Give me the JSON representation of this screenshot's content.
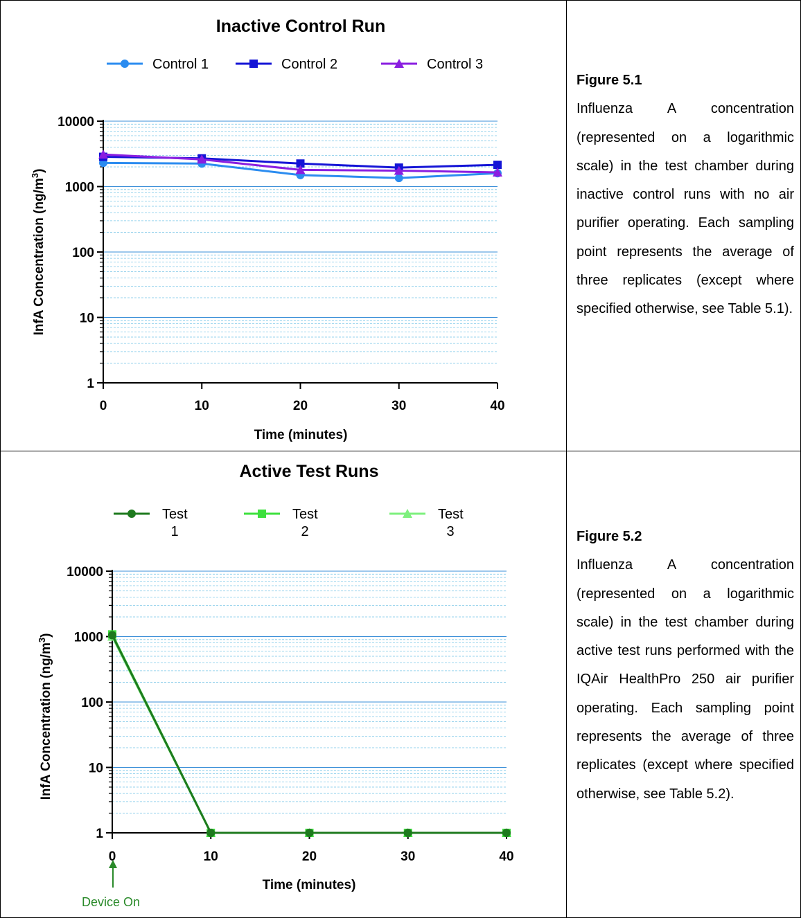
{
  "figures": [
    {
      "caption_title": "Figure 5.1",
      "caption_text": "Influenza A concentration (represented on a logarithmic scale) in the test chamber during inactive control runs with no air purifier operating. Each sampling point represents the average of three replicates (except where specified otherwise, see Table 5.1)."
    },
    {
      "caption_title": "Figure 5.2",
      "caption_text": "Influenza A concentration (represented on a logarithmic scale) in the test chamber during active test runs performed with the IQAir HealthPro 250 air purifier operating. Each sampling point represents the average of three replicates (except where specified otherwise, see Table 5.2)."
    }
  ],
  "chart_data": [
    {
      "type": "line",
      "title": "Inactive Control Run",
      "xlabel": "Time (minutes)",
      "ylabel": "InfA Concentration (ng/m",
      "ylabel_sup": "3",
      "ylabel_close": ")",
      "y_scale": "log",
      "ylim": [
        1,
        10000
      ],
      "xlim": [
        0,
        40
      ],
      "x_ticks": [
        "0",
        "10",
        "20",
        "30",
        "40"
      ],
      "y_ticks": [
        "1",
        "10",
        "100",
        "1000",
        "10000"
      ],
      "x": [
        0,
        10,
        20,
        30,
        40
      ],
      "grid": true,
      "legend_position": "top",
      "series": [
        {
          "name": "Control 1",
          "marker": "circle",
          "color": "#2b8cf0",
          "values": [
            2300,
            2250,
            1500,
            1350,
            1600
          ]
        },
        {
          "name": "Control 2",
          "marker": "square",
          "color": "#1414d6",
          "values": [
            2850,
            2700,
            2250,
            1950,
            2150
          ]
        },
        {
          "name": "Control 3",
          "marker": "triangle",
          "color": "#8a1ee0",
          "values": [
            3100,
            2600,
            1800,
            1750,
            1650
          ]
        }
      ]
    },
    {
      "type": "line",
      "title": "Active Test Runs",
      "xlabel": "Time (minutes)",
      "ylabel": "InfA Concentration (ng/m",
      "ylabel_sup": "3",
      "ylabel_close": ")",
      "y_scale": "log",
      "ylim": [
        1,
        10000
      ],
      "xlim": [
        0,
        40
      ],
      "x_ticks": [
        "0",
        "10",
        "20",
        "30",
        "40"
      ],
      "y_ticks": [
        "1",
        "10",
        "100",
        "1000",
        "10000"
      ],
      "x": [
        0,
        10,
        20,
        30,
        40
      ],
      "grid": true,
      "legend_position": "top",
      "annotation": "Device On",
      "annotation_color": "#2a8a2a",
      "series": [
        {
          "name_line1": "Test",
          "name_line2": "1",
          "marker": "circle",
          "color": "#1e7a1e",
          "values": [
            1050,
            1,
            1,
            1,
            1
          ]
        },
        {
          "name_line1": "Test",
          "name_line2": "2",
          "marker": "square",
          "color": "#3de03d",
          "values": [
            1080,
            1,
            1,
            1,
            1
          ]
        },
        {
          "name_line1": "Test",
          "name_line2": "3",
          "marker": "triangle",
          "color": "#7ef07e",
          "values": [
            1000,
            1,
            1,
            1,
            1
          ]
        }
      ]
    }
  ]
}
